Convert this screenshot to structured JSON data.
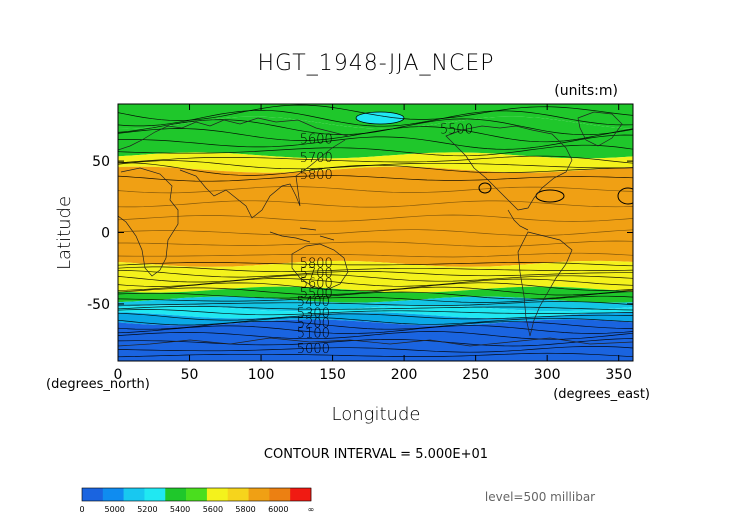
{
  "chart_data": {
    "type": "contour",
    "title": "HGT_1948-JJA_NCEP",
    "units": "(units:m)",
    "xlabel": "Longitude",
    "ylabel": "Latitude",
    "x_unit": "(degrees_east)",
    "y_unit": "(degrees_north)",
    "xlim": [
      0,
      360
    ],
    "ylim": [
      -90,
      90
    ],
    "x_ticks": [
      0,
      50,
      100,
      150,
      200,
      250,
      300,
      350
    ],
    "y_ticks": [
      50,
      0,
      -50
    ],
    "contour_interval_text": "CONTOUR INTERVAL = 5.000E+01",
    "level_text": "level=500 millibar",
    "contour_labels": [
      {
        "text": "5500",
        "lon": 225,
        "lat": 73
      },
      {
        "text": "5600",
        "lon": 127,
        "lat": 66
      },
      {
        "text": "5700",
        "lon": 127,
        "lat": 53
      },
      {
        "text": "5800",
        "lon": 127,
        "lat": 41
      },
      {
        "text": "5800",
        "lon": 127,
        "lat": -21
      },
      {
        "text": "5700",
        "lon": 127,
        "lat": -28
      },
      {
        "text": "5600",
        "lon": 127,
        "lat": -35
      },
      {
        "text": "5500",
        "lon": 127,
        "lat": -42
      },
      {
        "text": "5400",
        "lon": 125,
        "lat": -48
      },
      {
        "text": "5300",
        "lon": 125,
        "lat": -56
      },
      {
        "text": "5200",
        "lon": 125,
        "lat": -63
      },
      {
        "text": "5100",
        "lon": 125,
        "lat": -70
      },
      {
        "text": "5000",
        "lon": 125,
        "lat": -81
      }
    ],
    "field_bands": [
      {
        "lat_from": 90,
        "lat_to": 77,
        "value": 5400,
        "color": "#1fc72b"
      },
      {
        "lat_from": 77,
        "lat_to": 54,
        "value": 5500,
        "color": "#1fc72b"
      },
      {
        "lat_from": 54,
        "lat_to": 44,
        "value": 5700,
        "color": "#f4f21c"
      },
      {
        "lat_from": 44,
        "lat_to": -22,
        "value": 5850,
        "color": "#f0a014"
      },
      {
        "lat_from": -22,
        "lat_to": -40,
        "value": 5700,
        "color": "#f4f21c"
      },
      {
        "lat_from": -40,
        "lat_to": -47,
        "value": 5500,
        "color": "#1fc72b"
      },
      {
        "lat_from": -47,
        "lat_to": -53,
        "value": 5400,
        "color": "#14c6e6"
      },
      {
        "lat_from": -53,
        "lat_to": -58,
        "value": 5300,
        "color": "#20e8f2"
      },
      {
        "lat_from": -58,
        "lat_to": -63,
        "value": 5200,
        "color": "#0aa8e6"
      },
      {
        "lat_from": -63,
        "lat_to": -90,
        "value": 5000,
        "color": "#1a64e0"
      }
    ],
    "colorbar": {
      "tick_labels": [
        "0",
        "5000",
        "5200",
        "5400",
        "5600",
        "5800",
        "6000",
        "∞"
      ],
      "colors": [
        "#1a64e0",
        "#0f8cf0",
        "#18c8f0",
        "#20e8f2",
        "#1fc72b",
        "#4ade1e",
        "#f4f21c",
        "#f6d41c",
        "#f0a014",
        "#ec8012",
        "#f01a12"
      ]
    }
  }
}
